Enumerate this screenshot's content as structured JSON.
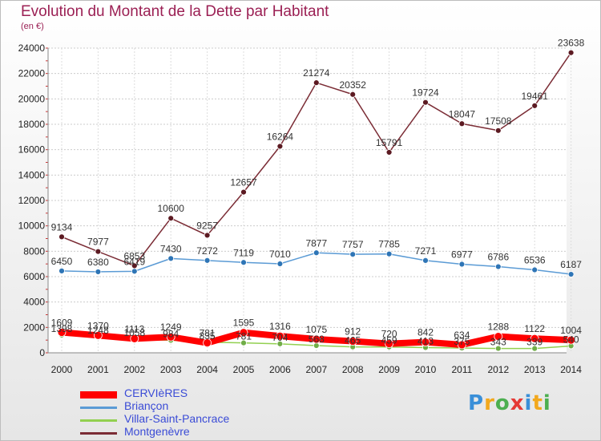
{
  "header": {
    "title": "Evolution du Montant de la Dette par Habitant",
    "subtitle": "(en €)"
  },
  "logo": {
    "text": "Proxiti"
  },
  "chart_data": {
    "type": "line",
    "title": "Evolution du Montant de la Dette par Habitant",
    "subtitle": "(en €)",
    "x": [
      2000,
      2001,
      2002,
      2003,
      2004,
      2005,
      2006,
      2007,
      2008,
      2009,
      2010,
      2011,
      2012,
      2013,
      2014
    ],
    "ylim": [
      0,
      24000
    ],
    "yticks": [
      0,
      2000,
      4000,
      6000,
      8000,
      10000,
      12000,
      14000,
      16000,
      18000,
      20000,
      22000,
      24000
    ],
    "grid": true,
    "legend": "bottom-left",
    "series": [
      {
        "name": "CERVIèRES",
        "color": "#ff0000",
        "marker": "#ff0000",
        "values": [
          1609,
          1370,
          1113,
          1249,
          781,
          1595,
          1316,
          1075,
          912,
          720,
          842,
          634,
          1288,
          1122,
          1004
        ]
      },
      {
        "name": "Briançon",
        "color": "#5b9bd5",
        "marker": "#2e75b6",
        "values": [
          6450,
          6380,
          6419,
          7430,
          7272,
          7119,
          7010,
          7877,
          7757,
          7785,
          7271,
          6977,
          6786,
          6536,
          6187
        ]
      },
      {
        "name": "Villar-Saint-Pancrace",
        "color": "#92d050",
        "marker": "#70ad47",
        "values": [
          1398,
          1248,
          1058,
          984,
          835,
          781,
          704,
          568,
          465,
          459,
          413,
          375,
          343,
          339,
          540
        ]
      },
      {
        "name": "Montgenèvre",
        "color": "#7b2c35",
        "marker": "#5c1a22",
        "values": [
          9134,
          7977,
          6853,
          10600,
          9257,
          12657,
          16264,
          21274,
          20352,
          15791,
          19724,
          18047,
          17508,
          19461,
          23638
        ]
      }
    ]
  }
}
